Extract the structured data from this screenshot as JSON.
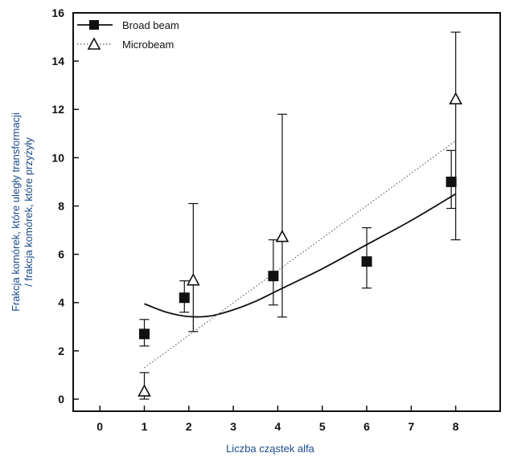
{
  "chart_data": {
    "type": "scatter",
    "xlabel": "Liczba cząstek alfa",
    "ylabel_line1": "Frakcja komórek, które uległy transformacji",
    "ylabel_line2": "/ frakcja komórek, które przyżyły",
    "xlim": [
      -0.6,
      9.0
    ],
    "ylim": [
      -0.5,
      16
    ],
    "x_ticks": [
      0,
      1,
      2,
      3,
      4,
      5,
      6,
      7,
      8
    ],
    "y_ticks": [
      0,
      2,
      4,
      6,
      8,
      10,
      12,
      14,
      16
    ],
    "grid": false,
    "legend_position": "top-left",
    "series": [
      {
        "name": "Broad beam",
        "marker": "filled-square",
        "line_style": "solid",
        "points": [
          {
            "x": 1,
            "y": 2.7,
            "err_low": 2.2,
            "err_high": 3.3
          },
          {
            "x": 1.9,
            "y": 4.2,
            "err_low": 3.6,
            "err_high": 4.9
          },
          {
            "x": 3.9,
            "y": 5.1,
            "err_low": 3.9,
            "err_high": 6.6
          },
          {
            "x": 6,
            "y": 5.7,
            "err_low": 4.6,
            "err_high": 7.1
          },
          {
            "x": 7.9,
            "y": 9.0,
            "err_low": 7.9,
            "err_high": 10.3
          }
        ],
        "fit_curve": [
          [
            1,
            3.95
          ],
          [
            1.5,
            3.6
          ],
          [
            2,
            3.42
          ],
          [
            2.5,
            3.45
          ],
          [
            3,
            3.7
          ],
          [
            3.5,
            4.05
          ],
          [
            4,
            4.5
          ],
          [
            5,
            5.4
          ],
          [
            6,
            6.4
          ],
          [
            7,
            7.4
          ],
          [
            8,
            8.5
          ]
        ]
      },
      {
        "name": "Microbeam",
        "marker": "open-triangle",
        "line_style": "dotted",
        "points": [
          {
            "x": 1,
            "y": 0.3,
            "err_low": 0.0,
            "err_high": 1.1
          },
          {
            "x": 2.1,
            "y": 4.9,
            "err_low": 2.8,
            "err_high": 8.1
          },
          {
            "x": 4.1,
            "y": 6.7,
            "err_low": 3.4,
            "err_high": 11.8
          },
          {
            "x": 8,
            "y": 12.4,
            "err_low": 6.6,
            "err_high": 15.2
          }
        ],
        "fit_line": [
          [
            1,
            1.3
          ],
          [
            8,
            10.7
          ]
        ]
      }
    ]
  }
}
